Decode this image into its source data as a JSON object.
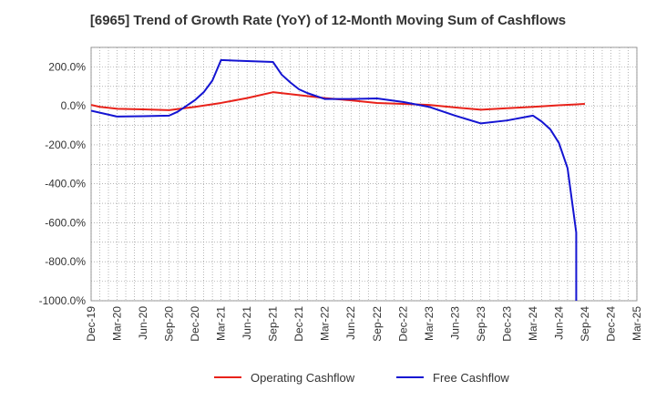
{
  "chart_data": {
    "type": "line",
    "title": "[6965]  Trend of Growth Rate (YoY) of 12-Month Moving Sum of Cashflows",
    "xlabel": "",
    "ylabel": "",
    "ylim": [
      -1000,
      300
    ],
    "yticks": [
      200,
      0,
      -200,
      -400,
      -600,
      -800,
      -1000
    ],
    "ytick_labels": [
      "200.0%",
      "0.0%",
      "-200.0%",
      "-400.0%",
      "-600.0%",
      "-800.0%",
      "-1000.0%"
    ],
    "xlim": [
      "2019-12",
      "2025-03"
    ],
    "xtick_labels": [
      "Dec-19",
      "Mar-20",
      "Jun-20",
      "Sep-20",
      "Dec-20",
      "Mar-21",
      "Jun-21",
      "Sep-21",
      "Dec-21",
      "Mar-22",
      "Jun-22",
      "Sep-22",
      "Dec-22",
      "Mar-23",
      "Jun-23",
      "Sep-23",
      "Dec-23",
      "Mar-24",
      "Jun-24",
      "Sep-24",
      "Dec-24",
      "Mar-25"
    ],
    "grid": true,
    "legend_position": "bottom",
    "series": [
      {
        "name": "Operating Cashflow",
        "color": "#e8221a",
        "points": [
          [
            "2019-12",
            5
          ],
          [
            "2020-01",
            -5
          ],
          [
            "2020-03",
            -15
          ],
          [
            "2020-06",
            -18
          ],
          [
            "2020-09",
            -22
          ],
          [
            "2020-12",
            -5
          ],
          [
            "2021-03",
            15
          ],
          [
            "2021-06",
            40
          ],
          [
            "2021-09",
            70
          ],
          [
            "2021-12",
            55
          ],
          [
            "2022-03",
            40
          ],
          [
            "2022-06",
            28
          ],
          [
            "2022-09",
            15
          ],
          [
            "2022-12",
            10
          ],
          [
            "2023-03",
            5
          ],
          [
            "2023-06",
            -8
          ],
          [
            "2023-09",
            -20
          ],
          [
            "2023-12",
            -12
          ],
          [
            "2024-03",
            -5
          ],
          [
            "2024-06",
            3
          ],
          [
            "2024-09",
            10
          ]
        ]
      },
      {
        "name": "Free Cashflow",
        "color": "#1414d2",
        "points": [
          [
            "2019-12",
            -25
          ],
          [
            "2020-03",
            -55
          ],
          [
            "2020-06",
            -53
          ],
          [
            "2020-09",
            -50
          ],
          [
            "2020-10",
            -30
          ],
          [
            "2020-11",
            0
          ],
          [
            "2020-12",
            30
          ],
          [
            "2021-01",
            70
          ],
          [
            "2021-02",
            130
          ],
          [
            "2021-03",
            235
          ],
          [
            "2021-06",
            230
          ],
          [
            "2021-09",
            225
          ],
          [
            "2021-10",
            160
          ],
          [
            "2021-11",
            120
          ],
          [
            "2021-12",
            85
          ],
          [
            "2022-01",
            65
          ],
          [
            "2022-03",
            35
          ],
          [
            "2022-06",
            35
          ],
          [
            "2022-09",
            38
          ],
          [
            "2022-12",
            20
          ],
          [
            "2023-03",
            -5
          ],
          [
            "2023-06",
            -50
          ],
          [
            "2023-09",
            -90
          ],
          [
            "2023-12",
            -75
          ],
          [
            "2024-03",
            -50
          ],
          [
            "2024-04",
            -80
          ],
          [
            "2024-05",
            -120
          ],
          [
            "2024-06",
            -190
          ],
          [
            "2024-07",
            -320
          ],
          [
            "2024-08",
            -650
          ],
          [
            "2024-08",
            -1000
          ]
        ]
      }
    ]
  }
}
